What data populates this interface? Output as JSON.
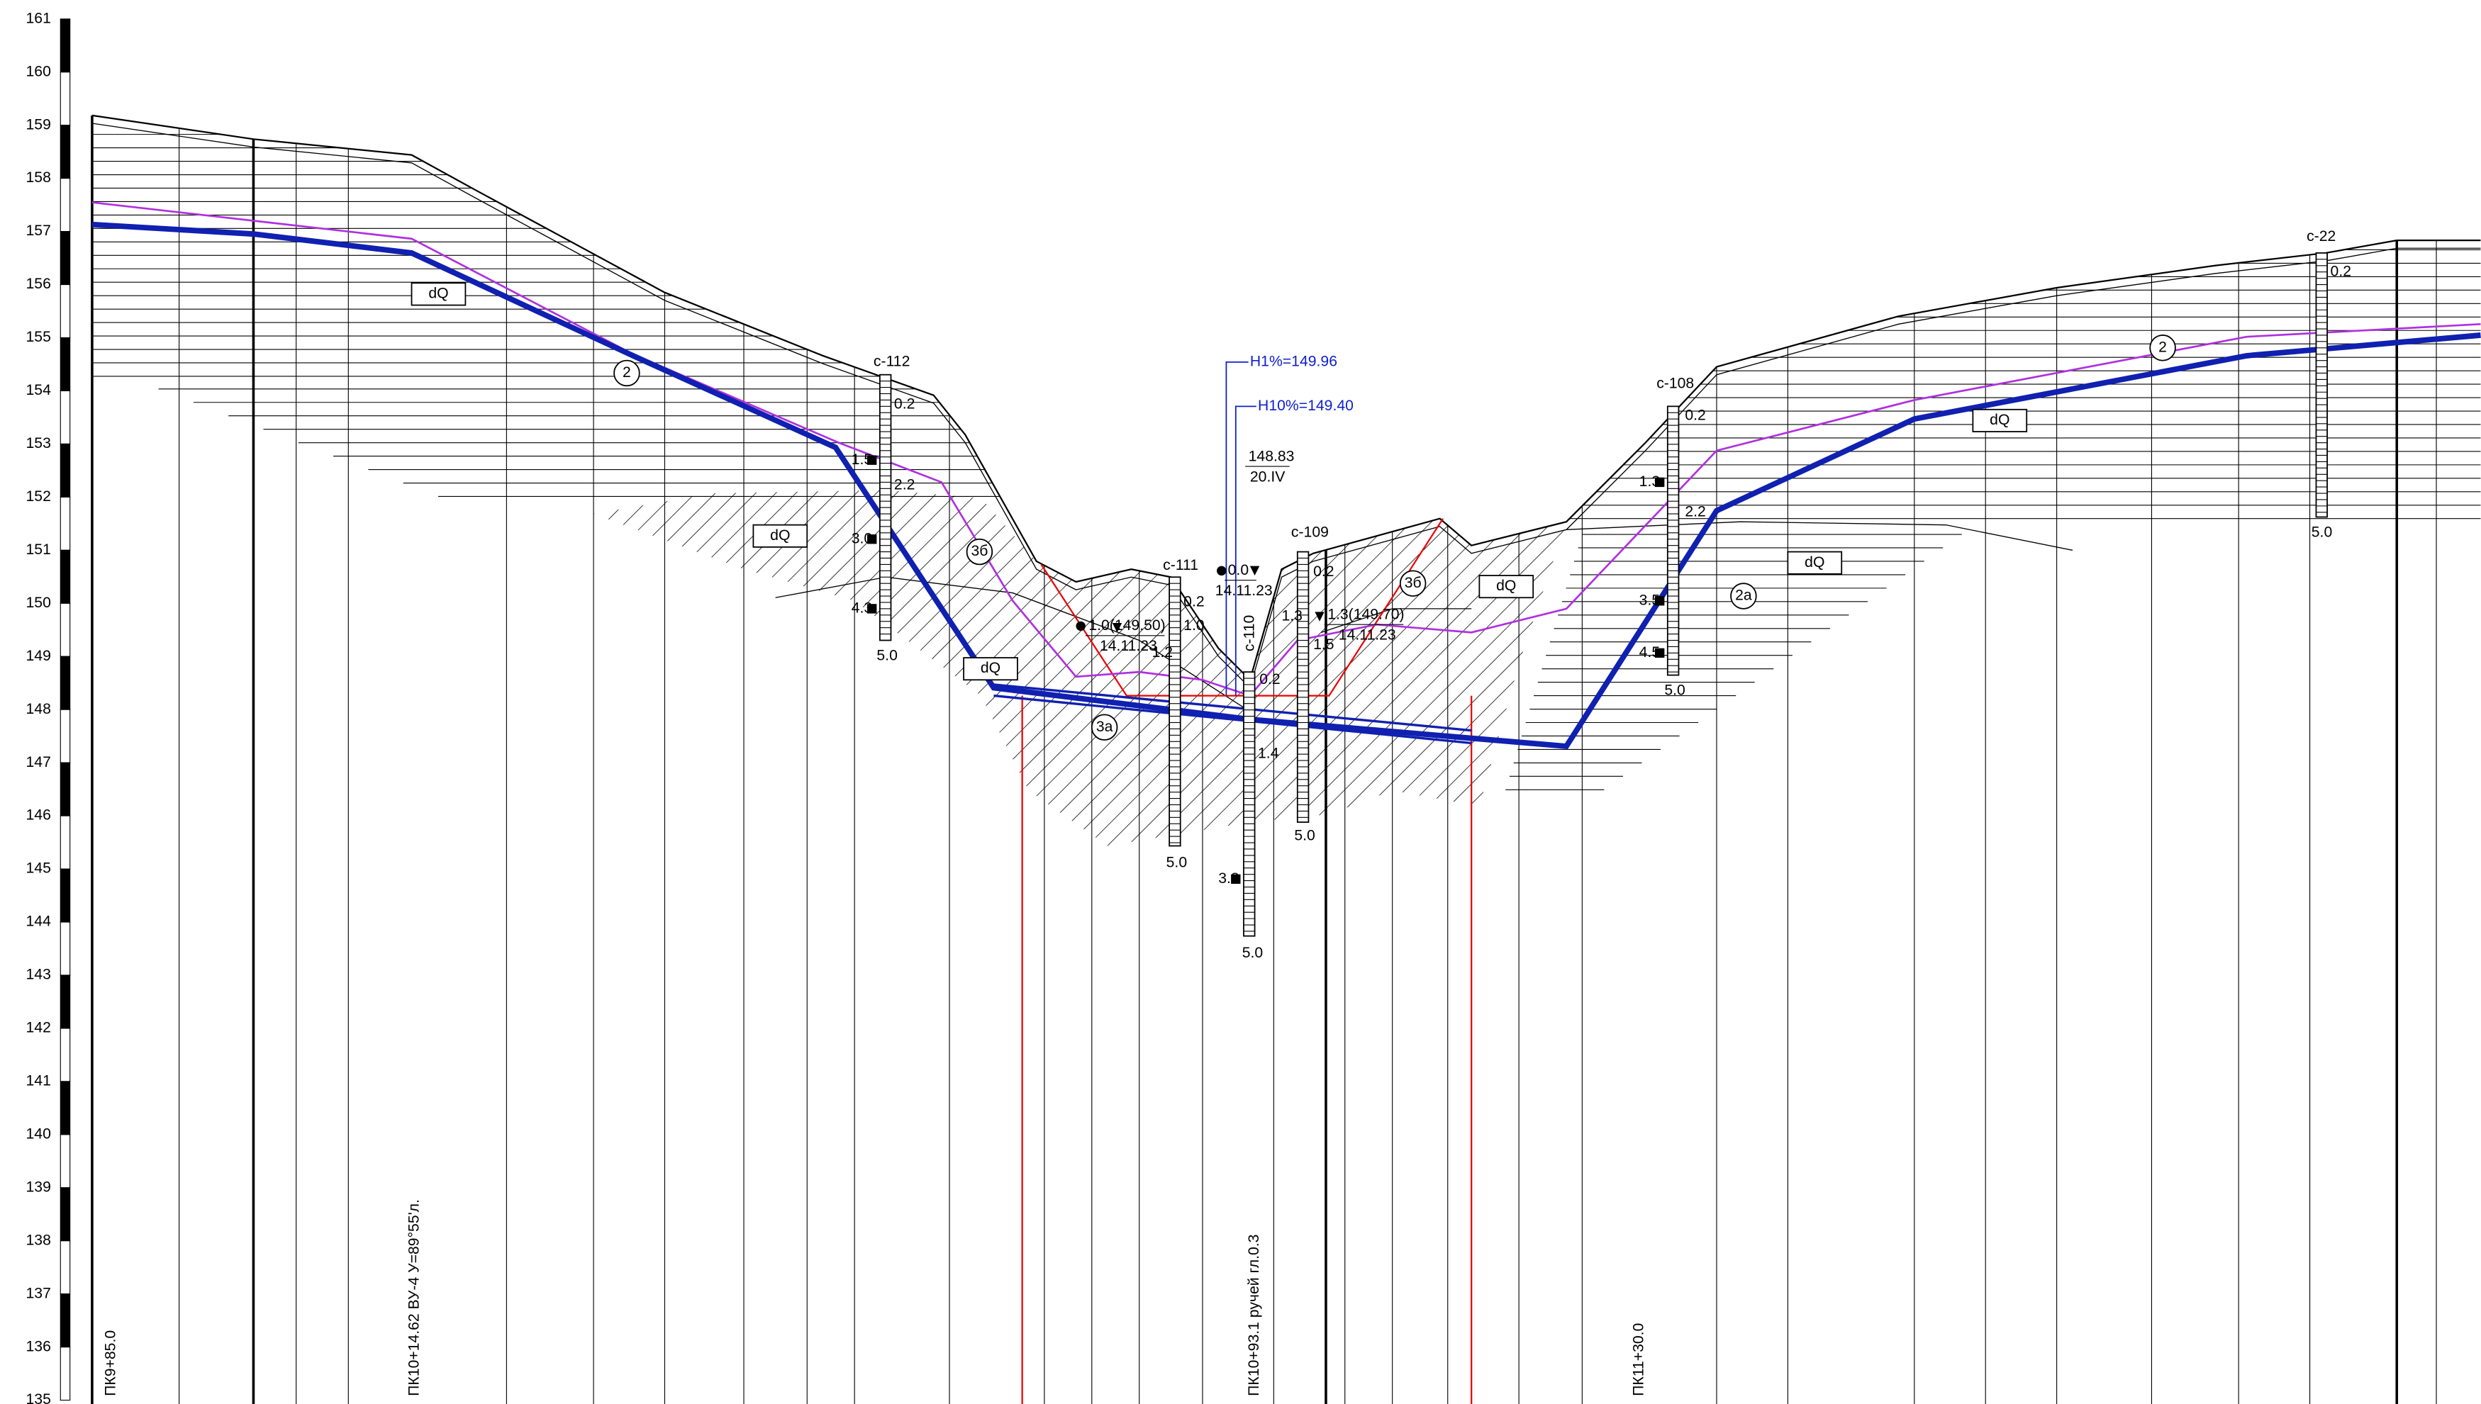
{
  "elevation_scale": [
    161,
    160,
    159,
    158,
    157,
    156,
    155,
    154,
    153,
    152,
    151,
    150,
    149,
    148,
    147,
    146,
    145,
    144,
    143,
    142,
    141,
    140,
    139,
    138,
    137,
    136,
    135
  ],
  "boreholes": [
    {
      "name": "с-112",
      "labels": [
        "0.2",
        "1.5",
        "2.2",
        "3.0",
        "4.3",
        "5.0"
      ]
    },
    {
      "name": "с-111",
      "labels": [
        "0.2",
        "1.0",
        "1.2",
        "5.0"
      ]
    },
    {
      "name": "с-110",
      "labels": [
        "0.2",
        "1.4",
        "3.8",
        "5.0"
      ]
    },
    {
      "name": "с-109",
      "labels": [
        "0.2",
        "1.3",
        "1.5",
        "5.0"
      ]
    },
    {
      "name": "с-108",
      "labels": [
        "0.2",
        "1.3",
        "2.2",
        "3.5",
        "4.5",
        "5.0"
      ]
    },
    {
      "name": "с-22",
      "labels": [
        "0.2",
        "5.0"
      ]
    }
  ],
  "soil_labels": [
    "dQ",
    "2",
    "dQ",
    "3б",
    "dQ",
    "3а",
    "3б",
    "dQ",
    "2а",
    "dQ",
    "dQ",
    "2"
  ],
  "water_levels": {
    "h1": "H1%=149.96",
    "h10": "H10%=149.40",
    "marks": [
      [
        "148.83",
        "20.IV"
      ],
      [
        "0.0",
        "14.11.23"
      ],
      [
        "1.0(149.50)",
        "14.11.23"
      ],
      [
        "1.3(149.70)",
        "14.11.23"
      ]
    ]
  },
  "stations": [
    "ПК9+85.0",
    "ПК10+14.62 ВУ-4 У=89°55'л.",
    "ПК10+93.1 ручей гл.0.3",
    "ПК11+30.0"
  ]
}
